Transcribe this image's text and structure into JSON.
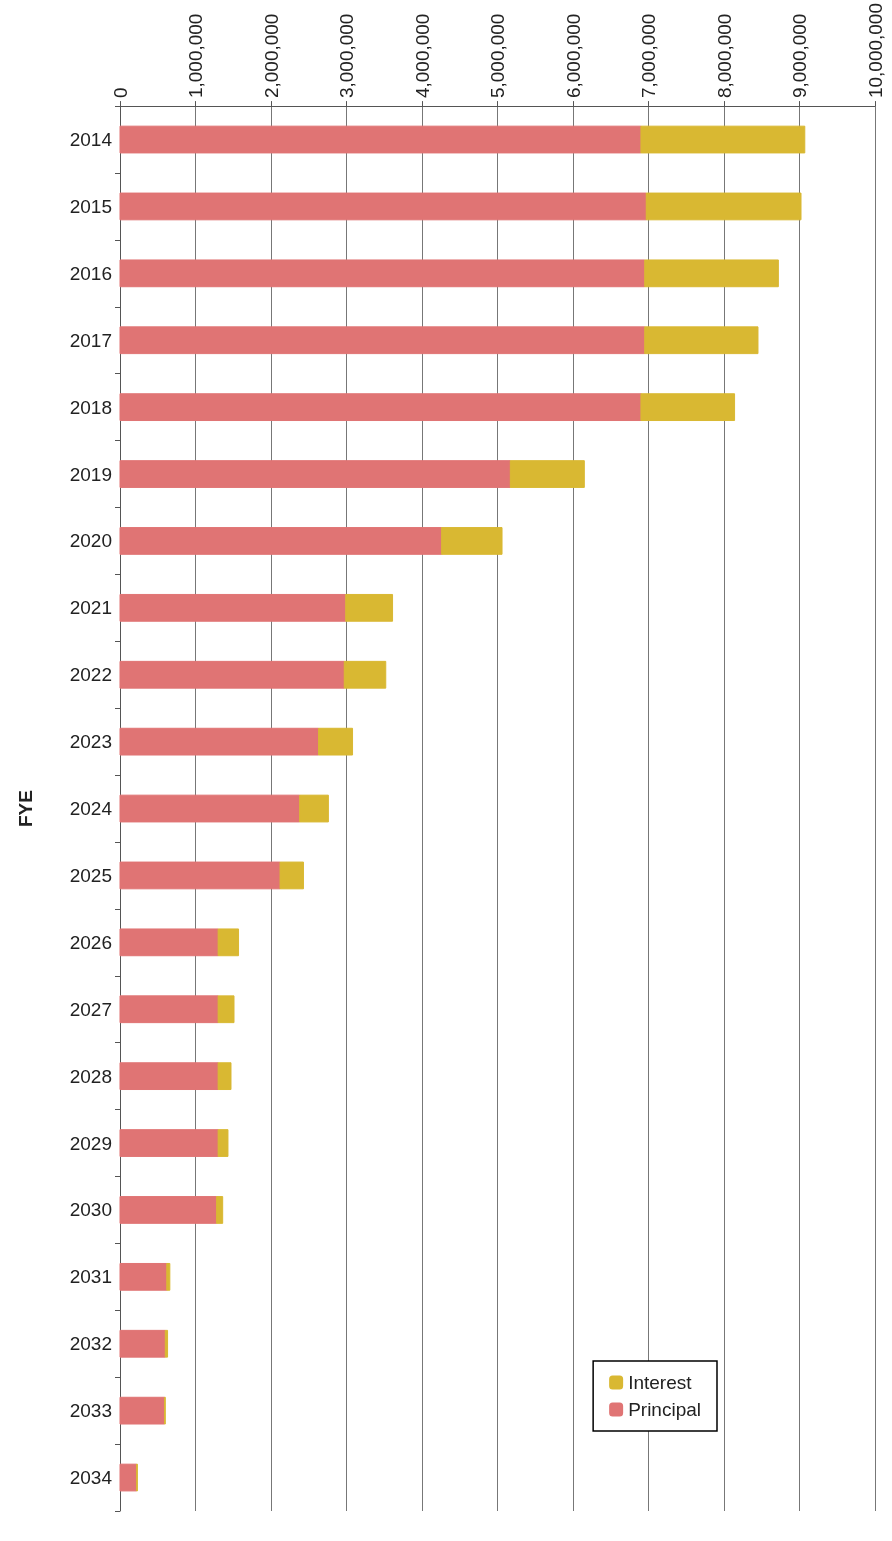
{
  "chart_data": {
    "type": "bar",
    "orientation": "horizontal",
    "stacked": true,
    "ylabel": "FYE",
    "categories": [
      "2014",
      "2015",
      "2016",
      "2017",
      "2018",
      "2019",
      "2020",
      "2021",
      "2022",
      "2023",
      "2024",
      "2025",
      "2026",
      "2027",
      "2028",
      "2029",
      "2030",
      "2031",
      "2032",
      "2033",
      "2034"
    ],
    "series": [
      {
        "name": "Principal",
        "color": "#e07474",
        "values": [
          6900000,
          6970000,
          6950000,
          6950000,
          6900000,
          5170000,
          4260000,
          2990000,
          2970000,
          2630000,
          2380000,
          2120000,
          1300000,
          1300000,
          1300000,
          1300000,
          1280000,
          620000,
          600000,
          590000,
          220000
        ]
      },
      {
        "name": "Interest",
        "color": "#d9b832",
        "values": [
          2170000,
          2050000,
          1770000,
          1500000,
          1240000,
          980000,
          800000,
          620000,
          550000,
          450000,
          380000,
          310000,
          270000,
          210000,
          170000,
          130000,
          80000,
          40000,
          30000,
          10000,
          10000
        ]
      }
    ],
    "xlim": [
      0,
      10000000
    ],
    "xticks": [
      {
        "value": 0,
        "label": "0"
      },
      {
        "value": 1000000,
        "label": "1,000,000"
      },
      {
        "value": 2000000,
        "label": "2,000,000"
      },
      {
        "value": 3000000,
        "label": "3,000,000"
      },
      {
        "value": 4000000,
        "label": "4,000,000"
      },
      {
        "value": 5000000,
        "label": "5,000,000"
      },
      {
        "value": 6000000,
        "label": "6,000,000"
      },
      {
        "value": 7000000,
        "label": "7,000,000"
      },
      {
        "value": 8000000,
        "label": "8,000,000"
      },
      {
        "value": 9000000,
        "label": "9,000,000"
      },
      {
        "value": 10000000,
        "label": "10,000,000"
      }
    ],
    "grid": "x",
    "legend": "bottom right"
  }
}
